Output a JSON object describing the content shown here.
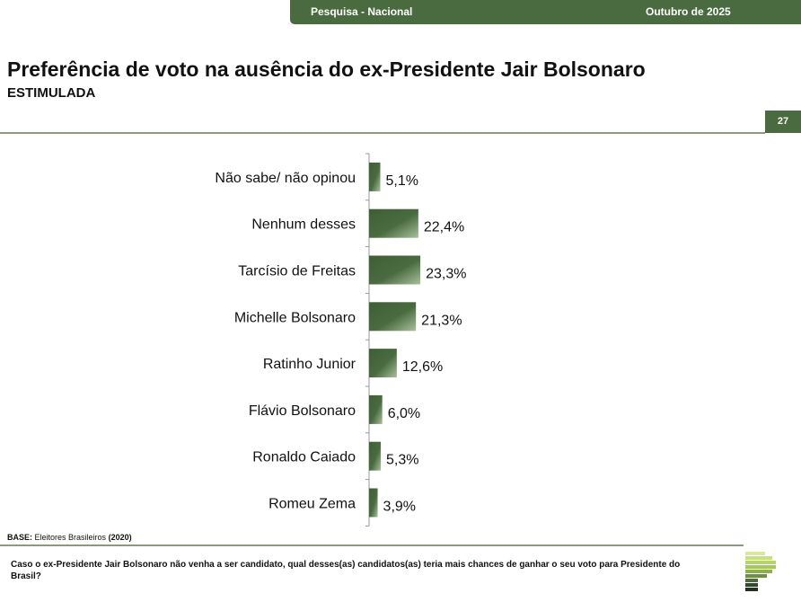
{
  "header": {
    "survey": "Pesquisa - Nacional",
    "date": "Outubro de 2025"
  },
  "title": "Preferência de voto na ausência do ex-Presidente Jair Bolsonaro",
  "subtitle": "ESTIMULADA",
  "page_number": "27",
  "base": {
    "label": "BASE:",
    "text": "Eleitores Brasileiros",
    "n": "(2020)"
  },
  "question": "Caso o ex-Presidente Jair Bolsonaro não venha a ser candidato, qual desses(as) candidatos(as) teria mais chances de ganhar o seu voto para Presidente do Brasil?",
  "colors": {
    "accent": "#4a6b40",
    "bar": "#4a6b40"
  },
  "chart_data": {
    "type": "bar",
    "orientation": "horizontal",
    "categories": [
      "Não sabe/ não opinou",
      "Nenhum desses",
      "Tarcísio de Freitas",
      "Michelle Bolsonaro",
      "Ratinho Junior",
      "Flávio Bolsonaro",
      "Ronaldo Caiado",
      "Romeu Zema"
    ],
    "values": [
      5.1,
      22.4,
      23.3,
      21.3,
      12.6,
      6.0,
      5.3,
      3.9
    ],
    "labels": [
      "5,1%",
      "22,4%",
      "23,3%",
      "21,3%",
      "12,6%",
      "6,0%",
      "5,3%",
      "3,9%"
    ],
    "xlim": [
      0,
      100
    ],
    "grid": false,
    "legend": "none"
  }
}
